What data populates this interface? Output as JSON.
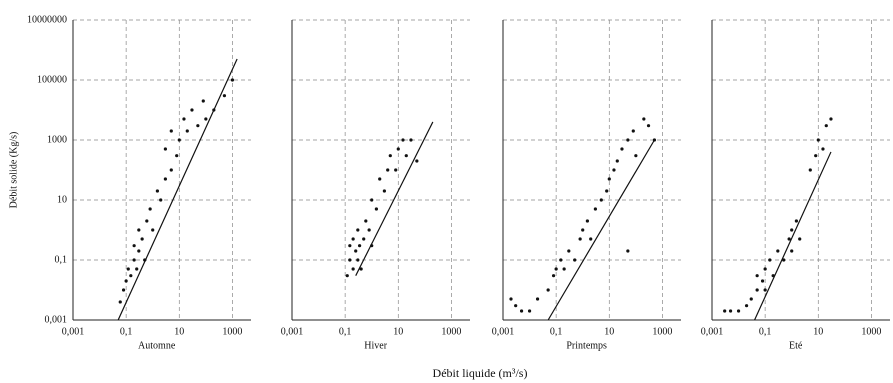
{
  "chart_data": {
    "type": "scatter",
    "ylabel": "Débit solide (Kg/s)",
    "xlabel": "Débit liquide (m³/s)",
    "log_x": true,
    "log_y": true,
    "grid": true,
    "ylim": [
      0.001,
      10000000
    ],
    "yticks": [
      {
        "value": 0.001,
        "label": "0,001"
      },
      {
        "value": 0.1,
        "label": "0,1"
      },
      10,
      1000,
      100000,
      10000000
    ],
    "xlim": [
      0.001,
      5000
    ],
    "xticks": [
      {
        "value": 0.001,
        "label": "0,001"
      },
      {
        "value": 0.1,
        "label": "0,1"
      },
      10,
      1000
    ],
    "color": "#111111",
    "panels": [
      {
        "title": "Automne",
        "x": [
          0.06,
          0.08,
          0.1,
          0.12,
          0.15,
          0.2,
          0.2,
          0.25,
          0.3,
          0.3,
          0.4,
          0.5,
          0.6,
          0.8,
          1,
          1.5,
          2,
          3,
          3,
          5,
          5,
          8,
          10,
          15,
          20,
          30,
          50,
          80,
          100,
          200,
          500,
          1000
        ],
        "y": [
          0.004,
          0.01,
          0.02,
          0.05,
          0.03,
          0.1,
          0.3,
          0.05,
          0.2,
          1,
          0.5,
          0.1,
          2,
          5,
          1,
          20,
          10,
          50,
          500,
          100,
          2000,
          300,
          1000,
          5000,
          2000,
          10000,
          3000,
          20000,
          5000,
          10000,
          30000,
          100000
        ],
        "fit": {
          "x": [
            0.05,
            1500
          ],
          "y": [
            0.001,
            500000
          ]
        }
      },
      {
        "title": "Hiver",
        "x": [
          0.12,
          0.15,
          0.15,
          0.2,
          0.2,
          0.25,
          0.3,
          0.3,
          0.35,
          0.4,
          0.5,
          0.6,
          0.8,
          1,
          1,
          1.5,
          2,
          3,
          4,
          5,
          8,
          10,
          15,
          20,
          30,
          50
        ],
        "y": [
          0.03,
          0.1,
          0.3,
          0.05,
          0.5,
          0.2,
          0.1,
          1,
          0.3,
          0.05,
          0.5,
          2,
          1,
          10,
          0.3,
          5,
          50,
          20,
          100,
          300,
          100,
          500,
          1000,
          300,
          1000,
          200
        ],
        "fit": {
          "x": [
            0.25,
            200
          ],
          "y": [
            0.03,
            4000
          ]
        }
      },
      {
        "title": "Printemps",
        "x": [
          0.002,
          0.003,
          0.005,
          0.01,
          0.02,
          0.05,
          0.08,
          0.1,
          0.15,
          0.2,
          0.3,
          0.5,
          0.8,
          1,
          1.5,
          2,
          3,
          5,
          8,
          10,
          15,
          20,
          30,
          50,
          50,
          80,
          100,
          200,
          300,
          500
        ],
        "y": [
          0.005,
          0.003,
          0.002,
          0.002,
          0.005,
          0.01,
          0.03,
          0.05,
          0.1,
          0.05,
          0.2,
          0.1,
          0.5,
          1,
          2,
          0.5,
          5,
          10,
          20,
          50,
          100,
          200,
          500,
          0.2,
          1000,
          2000,
          300,
          5000,
          3000,
          1000
        ],
        "fit": {
          "x": [
            0.05,
            500
          ],
          "y": [
            0.001,
            1000
          ]
        }
      },
      {
        "title": "Eté",
        "x": [
          0.003,
          0.005,
          0.01,
          0.02,
          0.03,
          0.05,
          0.05,
          0.08,
          0.1,
          0.1,
          0.15,
          0.2,
          0.3,
          0.5,
          0.8,
          1,
          1,
          1.5,
          2,
          5,
          8,
          10,
          15,
          20,
          30
        ],
        "y": [
          0.002,
          0.002,
          0.002,
          0.003,
          0.005,
          0.01,
          0.03,
          0.02,
          0.05,
          0.01,
          0.1,
          0.03,
          0.2,
          0.1,
          0.5,
          1,
          0.2,
          2,
          0.5,
          100,
          300,
          1000,
          500,
          3000,
          5000
        ],
        "fit": {
          "x": [
            0.04,
            30
          ],
          "y": [
            0.001,
            400
          ]
        }
      }
    ]
  }
}
